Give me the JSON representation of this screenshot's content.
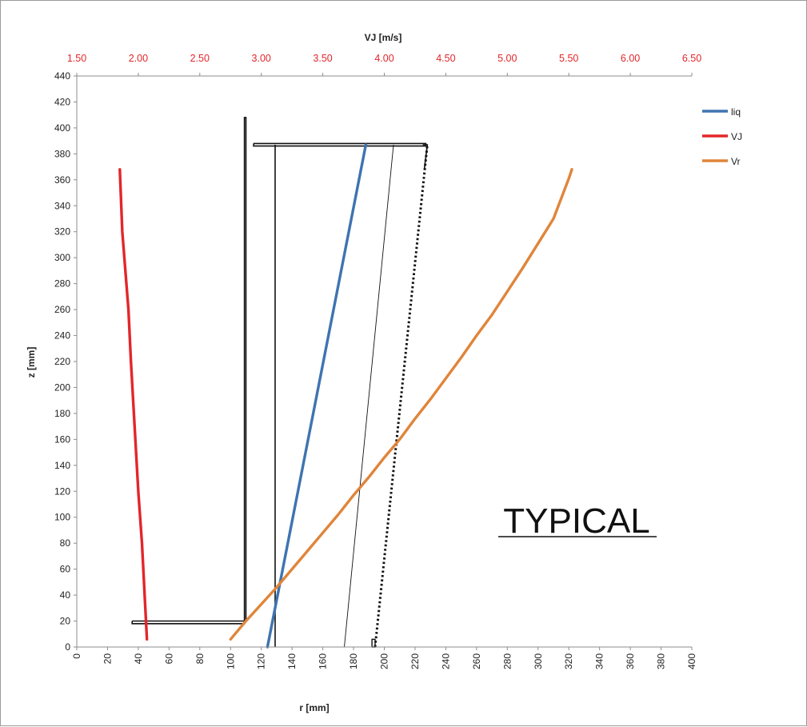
{
  "chart_data": {
    "type": "line",
    "annotation": "TYPICAL",
    "xlabel": "r [mm]",
    "ylabel": "z [mm]",
    "x2label": "VJ [m/s]",
    "xlim": [
      0,
      400
    ],
    "ylim": [
      0,
      440
    ],
    "x2lim": [
      1.5,
      6.5
    ],
    "x_ticks": [
      "0",
      "20",
      "40",
      "60",
      "80",
      "100",
      "120",
      "140",
      "160",
      "180",
      "200",
      "220",
      "240",
      "260",
      "280",
      "300",
      "320",
      "340",
      "360",
      "380",
      "400"
    ],
    "y_ticks": [
      "0",
      "20",
      "40",
      "60",
      "80",
      "100",
      "120",
      "140",
      "160",
      "180",
      "200",
      "220",
      "240",
      "260",
      "280",
      "300",
      "320",
      "340",
      "360",
      "380",
      "400",
      "420",
      "440"
    ],
    "x2_ticks": [
      "1.50",
      "2.00",
      "2.50",
      "3.00",
      "3.50",
      "4.00",
      "4.50",
      "5.00",
      "5.50",
      "6.00",
      "6.50"
    ],
    "colors": {
      "liq": "#3e74b0",
      "VJ": "#e3262a",
      "Vr": "#e0853a",
      "x2_ticks": "#e3262a",
      "geometry": "#111111"
    },
    "series": [
      {
        "name": "liq",
        "axis": "r",
        "x": [
          124,
          188
        ],
        "y": [
          0,
          387
        ]
      },
      {
        "name": "VJ",
        "axis": "VJ",
        "x": [
          1.85,
          1.87,
          1.92,
          1.94,
          1.97,
          2.0,
          2.03,
          2.07
        ],
        "y": [
          368,
          320,
          260,
          220,
          170,
          120,
          80,
          6
        ]
      },
      {
        "name": "Vr",
        "axis": "r",
        "x": [
          100,
          110,
          120,
          130,
          140,
          150,
          160,
          170,
          180,
          190,
          200,
          210,
          220,
          230,
          240,
          250,
          260,
          270,
          280,
          290,
          300,
          310,
          320,
          322
        ],
        "y": [
          6,
          20,
          33,
          46,
          60,
          74,
          88,
          102,
          117,
          131,
          146,
          160,
          176,
          191,
          207,
          223,
          240,
          256,
          274,
          292,
          311,
          330,
          361,
          368
        ]
      }
    ],
    "geometry": {
      "outline": {
        "x": [
          36,
          109,
          109,
          110,
          110,
          109,
          36,
          36
        ],
        "y": [
          20,
          20,
          408,
          408,
          20,
          18,
          18,
          20
        ]
      },
      "top_plate": {
        "x": [
          115,
          227,
          227,
          115,
          115
        ],
        "y": [
          388,
          388,
          386,
          386,
          388
        ]
      },
      "inner_vertical": {
        "x": [
          129,
          129
        ],
        "y": [
          0,
          387
        ]
      },
      "thin_line": {
        "x": [
          174,
          206
        ],
        "y": [
          0,
          387
        ]
      },
      "dotted_line": {
        "x": [
          194,
          228
        ],
        "y": [
          0,
          387
        ]
      },
      "right_cap": {
        "x": [
          225,
          228,
          226
        ],
        "y": [
          387,
          387,
          368
        ]
      },
      "bottom_box": {
        "x": [
          192,
          194,
          194,
          192,
          192
        ],
        "y": [
          0,
          0,
          6,
          6,
          0
        ]
      }
    },
    "legend": {
      "position": "right",
      "entries": [
        "liq",
        "VJ",
        "Vr"
      ]
    },
    "grid": false
  }
}
